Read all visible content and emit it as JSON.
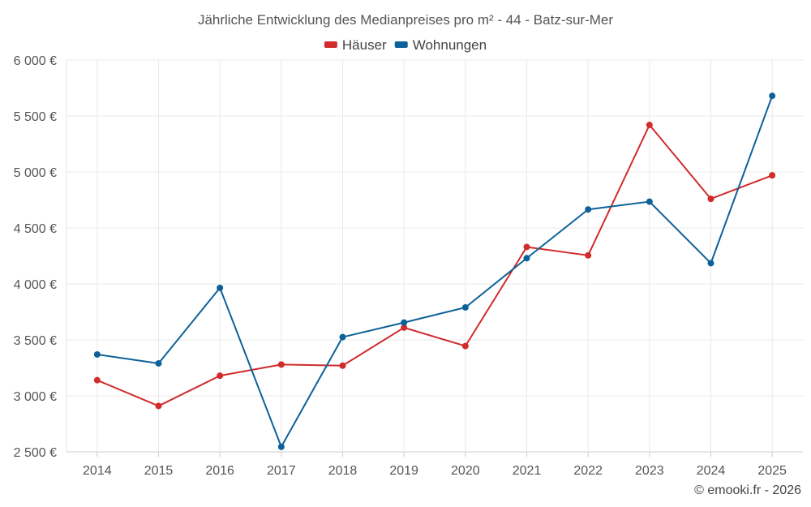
{
  "chart_data": {
    "type": "line",
    "title": "Jährliche Entwicklung des Medianpreises pro m² - 44 - Batz-sur-Mer",
    "categories": [
      "2014",
      "2015",
      "2016",
      "2017",
      "2018",
      "2019",
      "2020",
      "2021",
      "2022",
      "2023",
      "2024",
      "2025"
    ],
    "series": [
      {
        "name": "Häuser",
        "color": "#d12b2b",
        "values": [
          3140,
          2910,
          3180,
          3280,
          3270,
          3610,
          3445,
          4330,
          4255,
          5420,
          4760,
          4970
        ]
      },
      {
        "name": "Wohnungen",
        "color": "#0d6199",
        "values": [
          3370,
          3290,
          3965,
          2545,
          3525,
          3655,
          3790,
          4230,
          4665,
          4735,
          4185,
          5680
        ]
      }
    ],
    "ylim": [
      2500,
      6000
    ],
    "yticks": [
      2500,
      3000,
      3500,
      4000,
      4500,
      5000,
      5500,
      6000
    ],
    "ytick_labels": [
      "2 500 €",
      "3 000 €",
      "3 500 €",
      "4 000 €",
      "4 500 €",
      "5 000 €",
      "5 500 €",
      "6 000 €"
    ],
    "xlabel": "",
    "ylabel": "",
    "grid": true,
    "legend_position": "top-center",
    "credit": "© emooki.fr - 2026"
  }
}
